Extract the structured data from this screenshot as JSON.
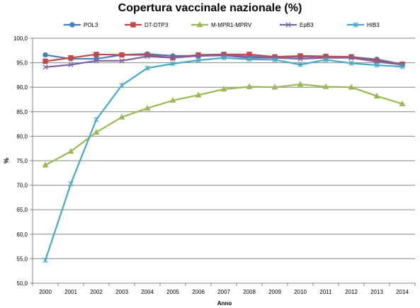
{
  "chart_data": {
    "type": "line",
    "title": "Copertura vaccinale nazionale (%)",
    "xlabel": "Anno",
    "ylabel": "%",
    "ylim": [
      50,
      100
    ],
    "yticks": [
      "50,0",
      "55,0",
      "60,0",
      "65,0",
      "70,0",
      "75,0",
      "80,0",
      "85,0",
      "90,0",
      "95,0",
      "100,0"
    ],
    "grid": true,
    "legend_position": "top",
    "categories": [
      "2000",
      "2001",
      "2002",
      "2003",
      "2004",
      "2005",
      "2006",
      "2007",
      "2008",
      "2009",
      "2010",
      "2011",
      "2012",
      "2013",
      "2014"
    ],
    "series": [
      {
        "name": "POL3",
        "color": "#4a7ebb",
        "marker": "circle",
        "values": [
          96.6,
          95.8,
          95.8,
          96.6,
          96.8,
          96.4,
          96.4,
          96.6,
          96.3,
          96.2,
          96.2,
          96.2,
          96.2,
          95.7,
          94.7
        ]
      },
      {
        "name": "DT-DTP3",
        "color": "#be4b48",
        "marker": "square",
        "values": [
          95.3,
          96.0,
          96.7,
          96.6,
          96.6,
          96.0,
          96.6,
          96.7,
          96.7,
          96.2,
          96.4,
          96.3,
          96.2,
          95.4,
          94.7
        ]
      },
      {
        "name": "M-MPR1-MPRV",
        "color": "#98b954",
        "marker": "triangle",
        "values": [
          74.1,
          76.9,
          80.8,
          83.9,
          85.7,
          87.3,
          88.4,
          89.6,
          90.1,
          90.0,
          90.6,
          90.1,
          90.0,
          88.2,
          86.6
        ]
      },
      {
        "name": "EpB3",
        "color": "#7d60a0",
        "marker": "x",
        "values": [
          94.1,
          94.6,
          95.4,
          95.4,
          96.3,
          96.0,
          96.4,
          96.5,
          96.0,
          96.0,
          95.8,
          96.0,
          96.0,
          95.2,
          94.6
        ]
      },
      {
        "name": "HIB3",
        "color": "#46aac5",
        "marker": "star",
        "values": [
          54.7,
          70.3,
          83.4,
          90.4,
          93.9,
          94.8,
          95.5,
          96.0,
          95.7,
          95.6,
          94.6,
          95.6,
          94.9,
          94.5,
          94.2
        ]
      }
    ]
  }
}
